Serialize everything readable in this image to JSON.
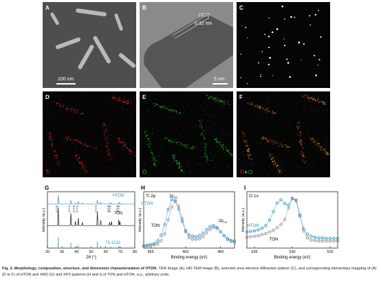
{
  "panels": [
    {
      "letter": "A",
      "scale_bar": "100 nm"
    },
    {
      "letter": "B",
      "annotation": "(110)",
      "annotation2": "0.32 nm",
      "scale_bar": "5 nm"
    },
    {
      "letter": "C"
    },
    {
      "letter": "D",
      "element": "Ti"
    },
    {
      "letter": "E",
      "element": "O"
    },
    {
      "letter": "F",
      "element": "Ti",
      "joiner": "+",
      "element2": "O"
    }
  ],
  "chart_data": [
    {
      "type": "line",
      "panel": "G",
      "xlabel": "2θ (°)",
      "ylabel": "Intensity (a.u.)",
      "xlim": [
        20,
        80
      ],
      "xticks": [
        20,
        30,
        40,
        50,
        60,
        70,
        80
      ],
      "ylim": [
        0,
        10.5
      ],
      "peak_labels": [
        "(1 1 0)",
        "(1 0 1)",
        "(2 0 0)",
        "(1 1 1)",
        "(2 1 1)",
        "(0 0 2)",
        "(3 1 0)",
        "(3 0 1)",
        "(1 1 2)"
      ],
      "series": [
        {
          "name": "HTON",
          "color": "#2b8fc7",
          "style": "line",
          "x": [
            20,
            27,
            27.4,
            27.8,
            35.7,
            36.1,
            36.5,
            38.8,
            39.2,
            39.6,
            40.8,
            41.2,
            41.6,
            43.6,
            44,
            44.4,
            53.9,
            54.3,
            54.7,
            56.2,
            56.6,
            57,
            62.3,
            62.7,
            63.1,
            63.6,
            64,
            64.4,
            68.6,
            69,
            69.4,
            69.8,
            70.2,
            80
          ],
          "values": [
            8.2,
            8.2,
            9.8,
            8.2,
            8.2,
            8.9,
            8.2,
            8.2,
            8.4,
            8.2,
            8.2,
            8.7,
            8.2,
            8.2,
            8.4,
            8.2,
            8.2,
            9.0,
            8.2,
            8.2,
            8.5,
            8.2,
            8.2,
            8.4,
            8.2,
            8.2,
            8.4,
            8.2,
            8.2,
            8.5,
            8.2,
            8.4,
            8.2,
            8.2
          ]
        },
        {
          "name": "TON",
          "color": "#111111",
          "style": "line",
          "x": [
            20,
            27,
            27.4,
            27.8,
            35.7,
            36.1,
            36.5,
            38.8,
            39.2,
            39.6,
            40.8,
            41.2,
            41.6,
            43.6,
            44,
            44.4,
            53.9,
            54.3,
            54.7,
            56.2,
            56.6,
            57,
            62.3,
            62.7,
            63.1,
            63.6,
            64,
            64.4,
            68.6,
            69,
            69.4,
            69.8,
            70.2,
            80
          ],
          "values": [
            4.2,
            4.2,
            7.6,
            4.2,
            4.2,
            6.5,
            4.2,
            4.2,
            5.0,
            4.2,
            4.2,
            5.6,
            4.2,
            4.2,
            4.8,
            4.2,
            4.2,
            6.8,
            4.2,
            4.2,
            5.2,
            4.2,
            4.2,
            4.8,
            4.2,
            4.2,
            5.0,
            4.2,
            4.2,
            5.3,
            4.2,
            4.9,
            4.2,
            4.2
          ]
        },
        {
          "name": "73-1232",
          "color": "#2b8fc7",
          "style": "stem",
          "x": [
            27.4,
            36.1,
            39.2,
            41.2,
            44,
            54.3,
            56.6,
            62.7,
            64,
            69,
            69.8
          ],
          "values": [
            2.0,
            1.0,
            0.3,
            0.6,
            0.2,
            1.2,
            0.4,
            0.2,
            0.2,
            0.4,
            0.2
          ]
        }
      ]
    },
    {
      "type": "line",
      "panel": "H",
      "title": "Ti 2p",
      "xlabel": "Binding energy (eV)",
      "ylabel": "Intensity (a.u.)",
      "xlim": [
        454,
        467
      ],
      "xticks": [
        455,
        460,
        465
      ],
      "ylim": [
        0,
        11
      ],
      "annotations": [
        {
          "text": "2p",
          "sub": "3/2"
        },
        {
          "text": "2p",
          "sub": "1/2"
        }
      ],
      "series": [
        {
          "name": "TON",
          "color": "#8c8c8c",
          "style": "circles",
          "x": [
            454,
            454.5,
            455,
            455.5,
            456,
            456.5,
            457,
            457.5,
            458,
            458.5,
            459,
            459.5,
            460,
            460.5,
            461,
            461.5,
            462,
            462.5,
            463,
            463.5,
            464,
            464.5,
            465,
            465.5,
            466,
            466.5,
            467
          ],
          "values": [
            0.3,
            0.4,
            0.5,
            0.6,
            0.8,
            1.4,
            2.8,
            5.5,
            8.0,
            9.1,
            8.2,
            5.8,
            3.2,
            2.0,
            1.7,
            1.7,
            1.8,
            2.2,
            2.9,
            3.6,
            4.0,
            3.9,
            3.2,
            2.4,
            1.7,
            1.3,
            1.1
          ]
        },
        {
          "name": "HTON",
          "color": "#2b8fc7",
          "style": "circles",
          "x": [
            454,
            454.5,
            455,
            455.5,
            456,
            456.5,
            457,
            457.5,
            458,
            458.5,
            459,
            459.5,
            460,
            460.5,
            461,
            461.5,
            462,
            462.5,
            463,
            463.5,
            464,
            464.5,
            465,
            465.5,
            466,
            466.5,
            467
          ],
          "values": [
            0.5,
            0.6,
            0.7,
            0.9,
            1.4,
            2.5,
            4.6,
            7.5,
            9.5,
            9.3,
            7.6,
            5.2,
            3.4,
            2.6,
            2.3,
            2.2,
            2.4,
            2.9,
            3.6,
            4.2,
            4.4,
            4.0,
            3.2,
            2.4,
            1.8,
            1.5,
            1.4
          ]
        }
      ]
    },
    {
      "type": "line",
      "panel": "I",
      "title": "O 1s",
      "xlabel": "Binding energy (eV)",
      "ylabel": "Intensity (a.u.)",
      "xlim": [
        536,
        524
      ],
      "xticks": [
        535,
        530,
        525
      ],
      "ylim": [
        0,
        10.5
      ],
      "series": [
        {
          "name": "TON",
          "color": "#8c8c8c",
          "style": "circles",
          "x": [
            536,
            535.5,
            535,
            534.5,
            534,
            533.5,
            533,
            532.5,
            532,
            531.5,
            531,
            530.5,
            530,
            529.5,
            529,
            528.5,
            528,
            527.5,
            527,
            526.5,
            526,
            525.5,
            525,
            524.5,
            524
          ],
          "values": [
            2.0,
            2.1,
            2.2,
            2.3,
            2.5,
            2.7,
            3.0,
            3.3,
            3.8,
            4.4,
            5.3,
            7.4,
            9.3,
            9.0,
            6.2,
            3.2,
            1.9,
            1.5,
            1.4,
            1.3,
            1.3,
            1.3,
            1.3,
            1.3,
            1.3
          ]
        },
        {
          "name": "HTON",
          "color": "#2b8fc7",
          "style": "circles",
          "x": [
            536,
            535.5,
            535,
            534.5,
            534,
            533.5,
            533,
            532.5,
            532,
            531.5,
            531,
            530.5,
            530,
            529.5,
            529,
            528.5,
            528,
            527.5,
            527,
            526.5,
            526,
            525.5,
            525,
            524.5,
            524
          ],
          "values": [
            3.0,
            3.1,
            3.2,
            3.4,
            3.7,
            4.2,
            5.2,
            6.8,
            8.4,
            9.0,
            8.3,
            8.0,
            9.2,
            8.8,
            6.0,
            3.6,
            2.6,
            2.2,
            2.0,
            1.9,
            1.9,
            1.8,
            1.8,
            1.8,
            1.8
          ]
        }
      ]
    }
  ],
  "caption": {
    "title": "Fig. 2. Morphology, composition, structure, and dimension characterization of HTON.",
    "text": "TEM image (A), HR-TEM image (B), selected area electron diffraction pattern (C), and corresponding elementary mapping of (A) (D to F) of HTON and XRD (G) and XPS patterns (H and I) of TON and HTON. a.u., arbitrary units."
  }
}
